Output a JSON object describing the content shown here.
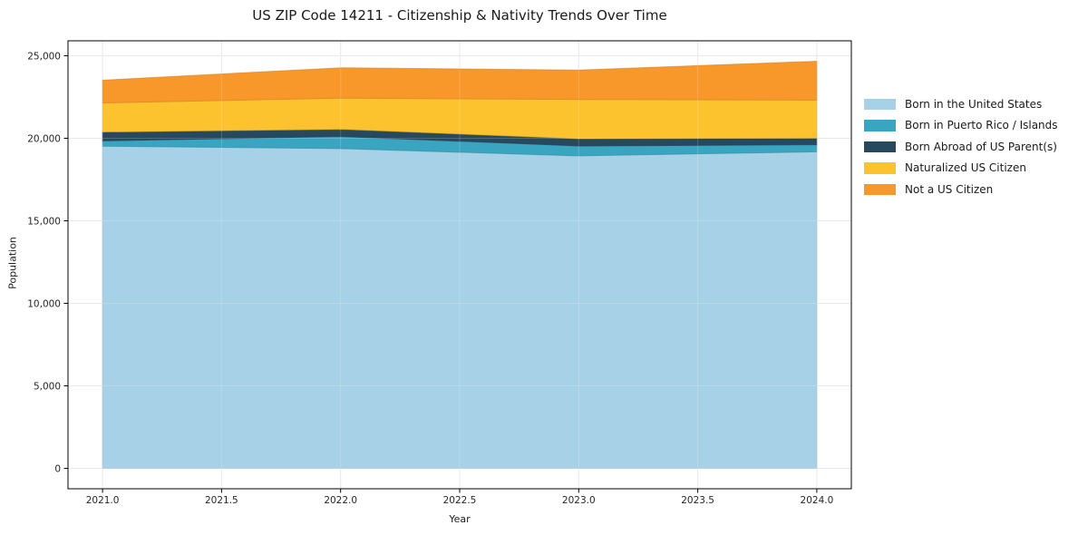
{
  "page": {
    "title": "US ZIP Code 14211 - Citizenship & Nativity Trends Over Time"
  },
  "chart_data": {
    "type": "area",
    "stacked": true,
    "title": "US ZIP Code 14211 - Citizenship & Nativity Trends Over Time",
    "xlabel": "Year",
    "ylabel": "Population",
    "x": [
      2021,
      2022,
      2023,
      2024
    ],
    "series": [
      {
        "name": "Born in the United States",
        "color": "#A7D1E6",
        "values": [
          19520,
          19370,
          18930,
          19180
        ]
      },
      {
        "name": "Born in Puerto Rico / Islands",
        "color": "#39A5C0",
        "values": [
          320,
          740,
          600,
          430
        ]
      },
      {
        "name": "Born Abroad of US Parent(s)",
        "color": "#26495D",
        "values": [
          540,
          430,
          440,
          400
        ]
      },
      {
        "name": "Naturalized US Citizen",
        "color": "#FDC32E",
        "values": [
          1760,
          1890,
          2380,
          2300
        ]
      },
      {
        "name": "Not a US Citizen",
        "color": "#F8982B",
        "values": [
          1380,
          1840,
          1780,
          2360
        ]
      }
    ],
    "totals": [
      23520,
      24270,
      24130,
      24670
    ],
    "x_ticks": [
      2021.0,
      2021.5,
      2022.0,
      2022.5,
      2023.0,
      2023.5,
      2024.0
    ],
    "x_tick_labels": [
      "2021.0",
      "2021.5",
      "2022.0",
      "2022.5",
      "2023.0",
      "2023.5",
      "2024.0"
    ],
    "y_ticks": [
      0,
      5000,
      10000,
      15000,
      20000,
      25000
    ],
    "y_tick_labels": [
      "0",
      "5,000",
      "10,000",
      "15,000",
      "20,000",
      "25,000"
    ],
    "xlim": [
      2020.855,
      2024.145
    ],
    "ylim": [
      -1234,
      25904
    ],
    "grid": true,
    "legend_position": "right of plot"
  },
  "colors": {
    "background": "#FFFFFF",
    "grid": "#E5E5E5",
    "spine": "#000000",
    "tick_text": "#262626"
  }
}
